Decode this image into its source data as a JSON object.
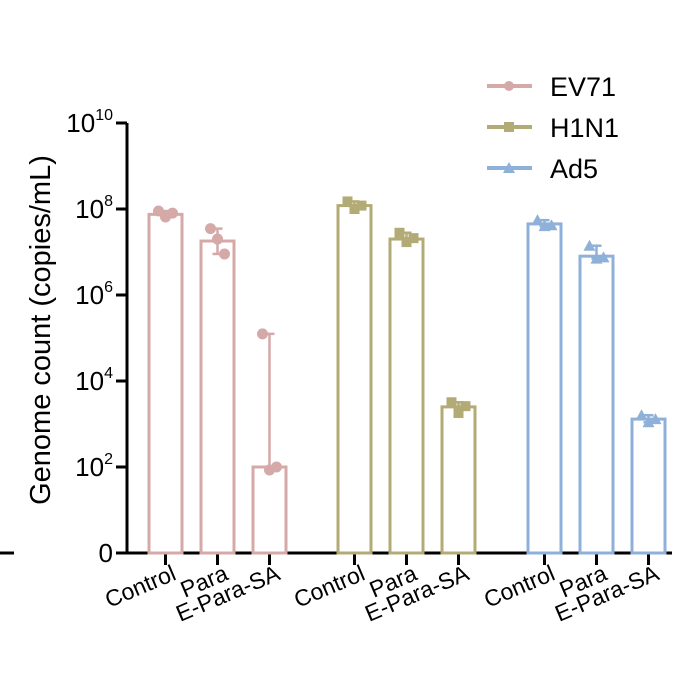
{
  "chart_data": {
    "type": "bar",
    "title": "",
    "xlabel": "",
    "ylabel": "Genome count (copies/mL)",
    "yscale": "log",
    "ylim": [
      0,
      10000000000
    ],
    "y_ticks": [
      {
        "base": "0",
        "exp": ""
      },
      {
        "base": "10",
        "exp": "2"
      },
      {
        "base": "10",
        "exp": "4"
      },
      {
        "base": "10",
        "exp": "6"
      },
      {
        "base": "10",
        "exp": "8"
      },
      {
        "base": "10",
        "exp": "10"
      }
    ],
    "grid": false,
    "legend_position": "top-right",
    "categories": [
      "Control",
      "Para",
      "E-Para-SA"
    ],
    "series": [
      {
        "name": "EV71",
        "color": "#d6a9a9",
        "marker": "circle",
        "values": [
          75000000,
          18000000,
          100
        ],
        "points": [
          [
            90000000,
            65000000,
            80000000
          ],
          [
            35000000,
            20000000,
            9000000
          ],
          [
            125000,
            85,
            100
          ]
        ]
      },
      {
        "name": "H1N1",
        "color": "#b3ab75",
        "marker": "square",
        "values": [
          120000000,
          20000000,
          2500
        ],
        "points": [
          [
            150000000,
            100000000,
            120000000
          ],
          [
            28000000,
            17000000,
            21000000
          ],
          [
            3200,
            1800,
            2600
          ]
        ]
      },
      {
        "name": "Ad5",
        "color": "#8fb0d8",
        "marker": "triangle",
        "values": [
          45000000,
          8000000,
          1300
        ],
        "points": [
          [
            55000000,
            40000000,
            42000000
          ],
          [
            14000000,
            7000000,
            7500000
          ],
          [
            1600,
            1100,
            1300
          ]
        ]
      }
    ]
  }
}
